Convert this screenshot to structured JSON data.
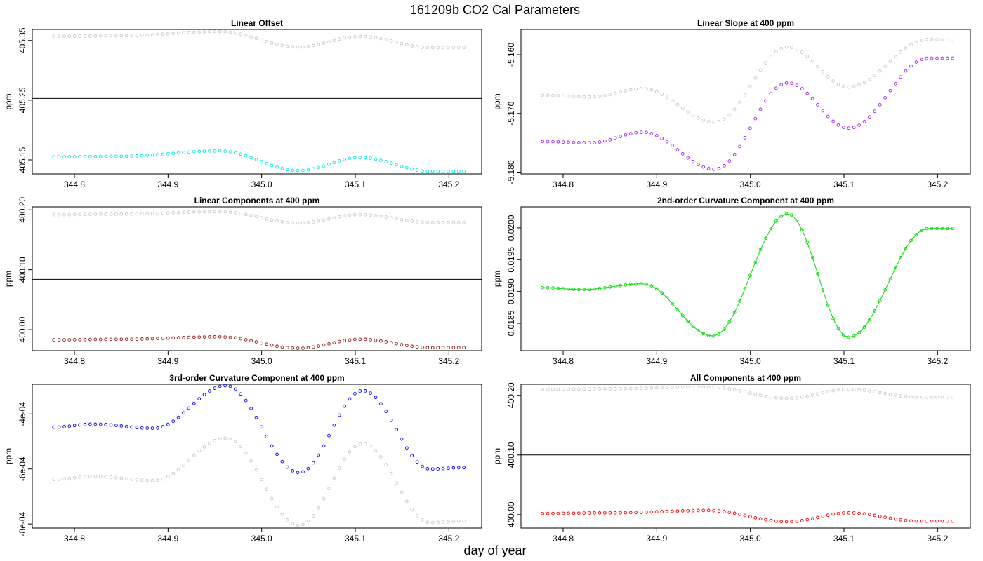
{
  "figure": {
    "title": "161209b   CO2 Cal Parameters",
    "xlabel": "day of year"
  },
  "chart_data": [
    {
      "type": "scatter",
      "title": "Linear Offset",
      "ylabel": "ppm",
      "xlim": [
        344.755,
        345.235
      ],
      "ylim": [
        405.1265,
        405.3685
      ],
      "xticks": [
        "344.8",
        "344.9",
        "345.0",
        "345.1",
        "345.2"
      ],
      "yticks": [
        "405.15",
        "405.25",
        "405.35"
      ],
      "hline": 405.253,
      "x_start": 344.778,
      "x_end": 345.216,
      "n": 80,
      "series": [
        {
          "color": "#c8c8c8",
          "markers": true,
          "line": false,
          "knots_x": [
            344.778,
            344.85,
            344.955,
            345.04,
            345.105,
            345.18,
            345.216
          ],
          "knots_y": [
            405.357,
            405.358,
            405.365,
            405.339,
            405.357,
            405.338,
            405.338
          ]
        },
        {
          "color": "#00e5e5",
          "markers": true,
          "line": false,
          "knots_x": [
            344.778,
            344.85,
            344.955,
            345.04,
            345.105,
            345.18,
            345.216
          ],
          "knots_y": [
            405.155,
            405.156,
            405.165,
            405.132,
            405.154,
            405.131,
            405.131
          ]
        }
      ]
    },
    {
      "type": "scatter",
      "title": "Linear Slope at 400 ppm",
      "ylabel": "ppm",
      "xlim": [
        344.755,
        345.235
      ],
      "ylim": [
        -5.1803,
        -5.1557
      ],
      "xticks": [
        "344.8",
        "344.9",
        "345.0",
        "345.1",
        "345.2"
      ],
      "yticks": [
        "-5.180",
        "-5.170",
        "-5.160"
      ],
      "x_start": 344.778,
      "x_end": 345.216,
      "n": 80,
      "series": [
        {
          "color": "#c8c8c8",
          "markers": true,
          "line": false,
          "knots_x": [
            344.778,
            344.83,
            344.885,
            344.962,
            345.04,
            345.105,
            345.19,
            345.216
          ],
          "knots_y": [
            -5.1669,
            -5.1672,
            -5.1658,
            -5.1715,
            -5.1587,
            -5.1655,
            -5.1574,
            -5.1575
          ]
        },
        {
          "color": "#a020f0",
          "markers": true,
          "line": false,
          "knots_x": [
            344.778,
            344.83,
            344.885,
            344.962,
            345.04,
            345.105,
            345.19,
            345.216
          ],
          "knots_y": [
            -5.1748,
            -5.175,
            -5.1732,
            -5.1795,
            -5.1648,
            -5.1725,
            -5.1606,
            -5.1606
          ]
        }
      ]
    },
    {
      "type": "scatter",
      "title": "Linear Components at 400 ppm",
      "ylabel": "ppm",
      "xlim": [
        344.755,
        345.235
      ],
      "ylim": [
        399.965,
        400.205
      ],
      "xticks": [
        "344.8",
        "344.9",
        "345.0",
        "345.1",
        "345.2"
      ],
      "yticks": [
        "400.00",
        "400.10",
        "400.20"
      ],
      "hline": 400.084,
      "x_start": 344.778,
      "x_end": 345.216,
      "n": 80,
      "series": [
        {
          "color": "#c8c8c8",
          "markers": true,
          "line": false,
          "knots_x": [
            344.778,
            344.85,
            344.955,
            345.04,
            345.105,
            345.18,
            345.216
          ],
          "knots_y": [
            400.192,
            400.193,
            400.197,
            400.178,
            400.192,
            400.179,
            400.179
          ]
        },
        {
          "color": "#8b1a1a",
          "markers": true,
          "line": false,
          "knots_x": [
            344.778,
            344.85,
            344.955,
            345.04,
            345.105,
            345.18,
            345.216
          ],
          "knots_y": [
            399.983,
            399.984,
            399.988,
            399.969,
            399.984,
            399.97,
            399.97
          ]
        }
      ]
    },
    {
      "type": "line",
      "title": "2nd-order Curvature Component at 400 ppm",
      "ylabel": "ppm",
      "xlim": [
        344.755,
        345.235
      ],
      "ylim": [
        0.01807,
        0.02033
      ],
      "xticks": [
        "344.8",
        "344.9",
        "345.0",
        "345.1",
        "345.2"
      ],
      "yticks": [
        "0.0185",
        "0.0190",
        "0.0195",
        "0.0200"
      ],
      "x_start": 344.778,
      "x_end": 345.216,
      "n": 80,
      "series": [
        {
          "color": "#00dd00",
          "markers": true,
          "line": true,
          "knots_x": [
            344.778,
            344.82,
            344.885,
            344.96,
            345.04,
            345.105,
            345.19,
            345.216
          ],
          "knots_y": [
            0.01906,
            0.01903,
            0.01912,
            0.0183,
            0.02022,
            0.01828,
            0.01999,
            0.01999
          ]
        }
      ]
    },
    {
      "type": "scatter",
      "title": "3rd-order Curvature Component at 400 ppm",
      "ylabel": "ppm",
      "xlim": [
        344.755,
        345.235
      ],
      "ylim": [
        -0.000815,
        -0.000292
      ],
      "xticks": [
        "344.8",
        "344.9",
        "345.0",
        "345.1",
        "345.2"
      ],
      "yticks": [
        "-8e-04",
        "-6e-04",
        "-4e-04"
      ],
      "x_start": 344.778,
      "x_end": 345.216,
      "n": 80,
      "series": [
        {
          "color": "#c8c8c8",
          "markers": true,
          "line": false,
          "knots_x": [
            344.778,
            344.82,
            344.885,
            344.962,
            345.04,
            345.108,
            345.18,
            345.216
          ],
          "knots_y": [
            -0.000638,
            -0.000627,
            -0.000642,
            -0.000488,
            -0.000805,
            -0.000508,
            -0.000795,
            -0.00079
          ]
        },
        {
          "color": "#0000ee",
          "markers": true,
          "line": false,
          "knots_x": [
            344.778,
            344.82,
            344.885,
            344.962,
            345.04,
            345.108,
            345.18,
            345.216
          ],
          "knots_y": [
            -0.000448,
            -0.000437,
            -0.000452,
            -0.000297,
            -0.000613,
            -0.000315,
            -0.0006,
            -0.000595
          ]
        }
      ]
    },
    {
      "type": "scatter",
      "title": "All Components at 400 ppm",
      "ylabel": "ppm",
      "xlim": [
        344.755,
        345.235
      ],
      "ylim": [
        399.9775,
        400.2185
      ],
      "xticks": [
        "344.8",
        "344.9",
        "345.0",
        "345.1",
        "345.2"
      ],
      "yticks": [
        "400.00",
        "400.10",
        "400.20"
      ],
      "hline": 400.1,
      "x_start": 344.778,
      "x_end": 345.216,
      "n": 80,
      "series": [
        {
          "color": "#c8c8c8",
          "markers": true,
          "line": false,
          "knots_x": [
            344.778,
            344.85,
            344.955,
            345.04,
            345.105,
            345.18,
            345.216
          ],
          "knots_y": [
            400.21,
            400.211,
            400.214,
            400.195,
            400.21,
            400.197,
            400.197
          ]
        },
        {
          "color": "#ee0000",
          "markers": true,
          "line": false,
          "knots_x": [
            344.778,
            344.85,
            344.955,
            345.04,
            345.105,
            345.18,
            345.216
          ],
          "knots_y": [
            400.002,
            400.003,
            400.007,
            399.988,
            400.003,
            399.989,
            399.989
          ]
        }
      ]
    }
  ]
}
